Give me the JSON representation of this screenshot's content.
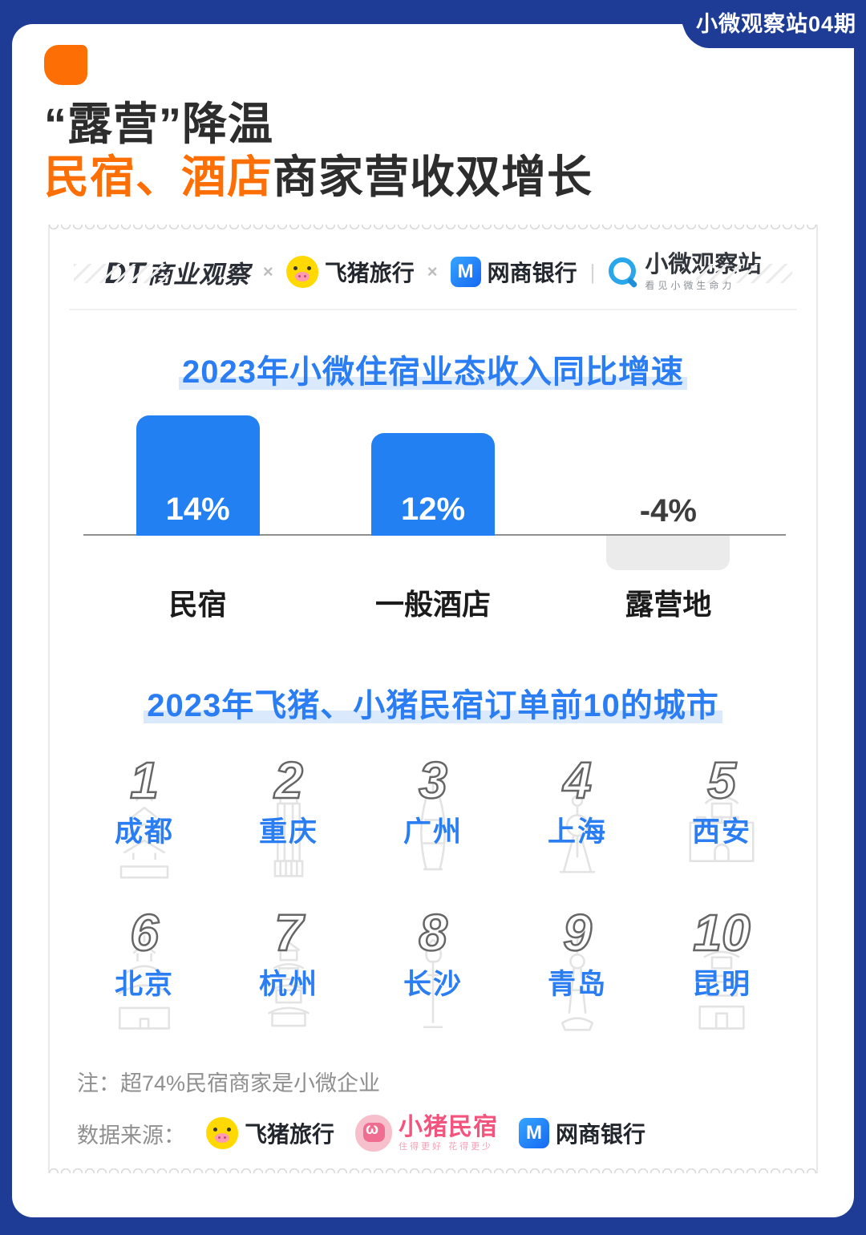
{
  "badge": {
    "label": "小微观察站04期"
  },
  "header": {
    "title_line1": "“露营”降温",
    "title_line2_highlight": "民宿、酒店",
    "title_line2_rest": "商家营收双增长"
  },
  "partners": {
    "dt_bold": "DT",
    "dt_rest": "商业观察",
    "cross1": "×",
    "feizhu": "飞猪旅行",
    "cross2": "×",
    "mybank_m": "M",
    "mybank": "网商银行",
    "pipe": "|",
    "xiaowei": "小微观察站",
    "xiaowei_tagline": "看见小微生命力"
  },
  "chart_data": {
    "type": "bar",
    "title": "2023年小微住宿业态收入同比增速",
    "categories": [
      "民宿",
      "一般酒店",
      "露营地"
    ],
    "values": [
      14,
      12,
      -4
    ],
    "value_labels": [
      "14%",
      "12%",
      "-4%"
    ],
    "unit": "percent",
    "baseline": 0,
    "bar_color_positive": "#2380f2",
    "bar_color_negative": "#ebebeb",
    "grid": false,
    "legend": false
  },
  "ranking": {
    "title": "2023年飞猪、小猪民宿订单前10的城市",
    "cities": [
      {
        "rank": "1",
        "name": "成都"
      },
      {
        "rank": "2",
        "name": "重庆"
      },
      {
        "rank": "3",
        "name": "广州"
      },
      {
        "rank": "4",
        "name": "上海"
      },
      {
        "rank": "5",
        "name": "西安"
      },
      {
        "rank": "6",
        "name": "北京"
      },
      {
        "rank": "7",
        "name": "杭州"
      },
      {
        "rank": "8",
        "name": "长沙"
      },
      {
        "rank": "9",
        "name": "青岛"
      },
      {
        "rank": "10",
        "name": "昆明"
      }
    ]
  },
  "footer": {
    "note": "注：超74%民宿商家是小微企业",
    "source_label": "数据来源：",
    "source_feizhu": "飞猪旅行",
    "source_xiaozhu": "小猪民宿",
    "xiaozhu_tagline": "住得更好 花得更少",
    "source_mybank": "网商银行"
  },
  "colors": {
    "accent_orange": "#fd6e05",
    "accent_blue": "#2a7df2",
    "background_navy": "#1e3c96"
  }
}
